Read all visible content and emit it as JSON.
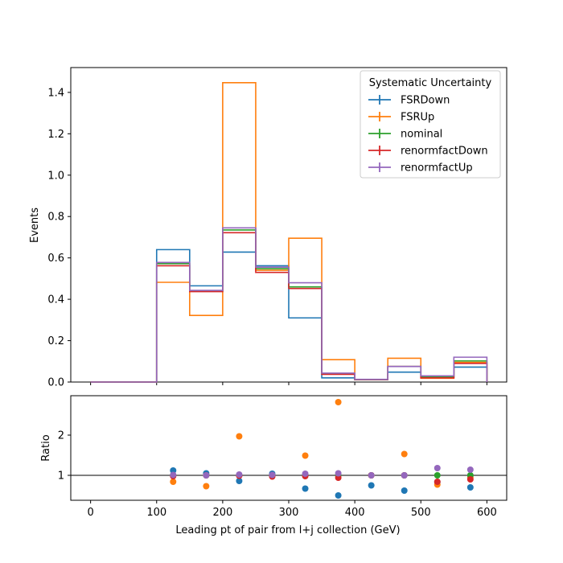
{
  "chart_data": {
    "type": "line",
    "x": {
      "label": "Leading pt of pair from l+j collection (GeV)",
      "ticks": [
        0,
        100,
        200,
        300,
        400,
        500,
        600
      ],
      "range": [
        -30,
        630
      ],
      "bin_edges": [
        0,
        100,
        150,
        200,
        250,
        300,
        350,
        400,
        450,
        500,
        550,
        600
      ],
      "bin_centers": [
        125,
        175,
        225,
        275,
        325,
        375,
        425,
        475,
        525,
        575
      ]
    },
    "top": {
      "ylabel": "Events",
      "ylim": [
        0,
        1.52
      ],
      "yticks": [
        0.0,
        0.2,
        0.4,
        0.6,
        0.8,
        1.0,
        1.2,
        1.4
      ]
    },
    "bottom": {
      "ylabel": "Ratio",
      "ylim": [
        0.38,
        2.98
      ],
      "yticks": [
        1,
        2
      ],
      "reference": 1
    },
    "legend": {
      "title": "Systematic Uncertainty",
      "position": "top-right"
    },
    "series": [
      {
        "name": "FSRDown",
        "color": "#1f77b4",
        "values": [
          0.0,
          0.64,
          0.465,
          0.628,
          0.562,
          0.31,
          0.02,
          0.012,
          0.048,
          0.022,
          0.072
        ],
        "ratio": [
          1.12,
          1.05,
          0.86,
          1.04,
          0.67,
          0.5,
          0.75,
          0.62,
          0.83,
          0.7
        ]
      },
      {
        "name": "FSRUp",
        "color": "#ff7f0e",
        "values": [
          0.0,
          0.482,
          0.322,
          1.447,
          0.54,
          0.695,
          0.108,
          0.012,
          0.115,
          0.018,
          0.095
        ],
        "ratio": [
          0.84,
          0.73,
          1.97,
          0.98,
          1.49,
          2.82,
          1.0,
          1.53,
          0.77,
          0.95
        ]
      },
      {
        "name": "nominal",
        "color": "#2ca02c",
        "values": [
          0.0,
          0.572,
          0.44,
          0.735,
          0.548,
          0.46,
          0.04,
          0.012,
          0.075,
          0.025,
          0.102
        ],
        "ratio": [
          1.0,
          1.0,
          1.0,
          1.0,
          1.0,
          1.0,
          1.0,
          1.0,
          1.0,
          1.0
        ]
      },
      {
        "name": "renormfactDown",
        "color": "#d62728",
        "values": [
          0.0,
          0.562,
          0.437,
          0.722,
          0.53,
          0.452,
          0.037,
          0.012,
          0.075,
          0.02,
          0.09
        ],
        "ratio": [
          0.98,
          1.0,
          0.99,
          0.97,
          0.98,
          0.94,
          1.0,
          1.0,
          0.84,
          0.9
        ]
      },
      {
        "name": "renormfactUp",
        "color": "#9467bd",
        "values": [
          0.0,
          0.578,
          0.443,
          0.745,
          0.555,
          0.48,
          0.043,
          0.013,
          0.075,
          0.03,
          0.12
        ],
        "ratio": [
          1.01,
          1.0,
          1.02,
          1.01,
          1.04,
          1.05,
          1.0,
          1.0,
          1.18,
          1.14
        ]
      }
    ]
  }
}
